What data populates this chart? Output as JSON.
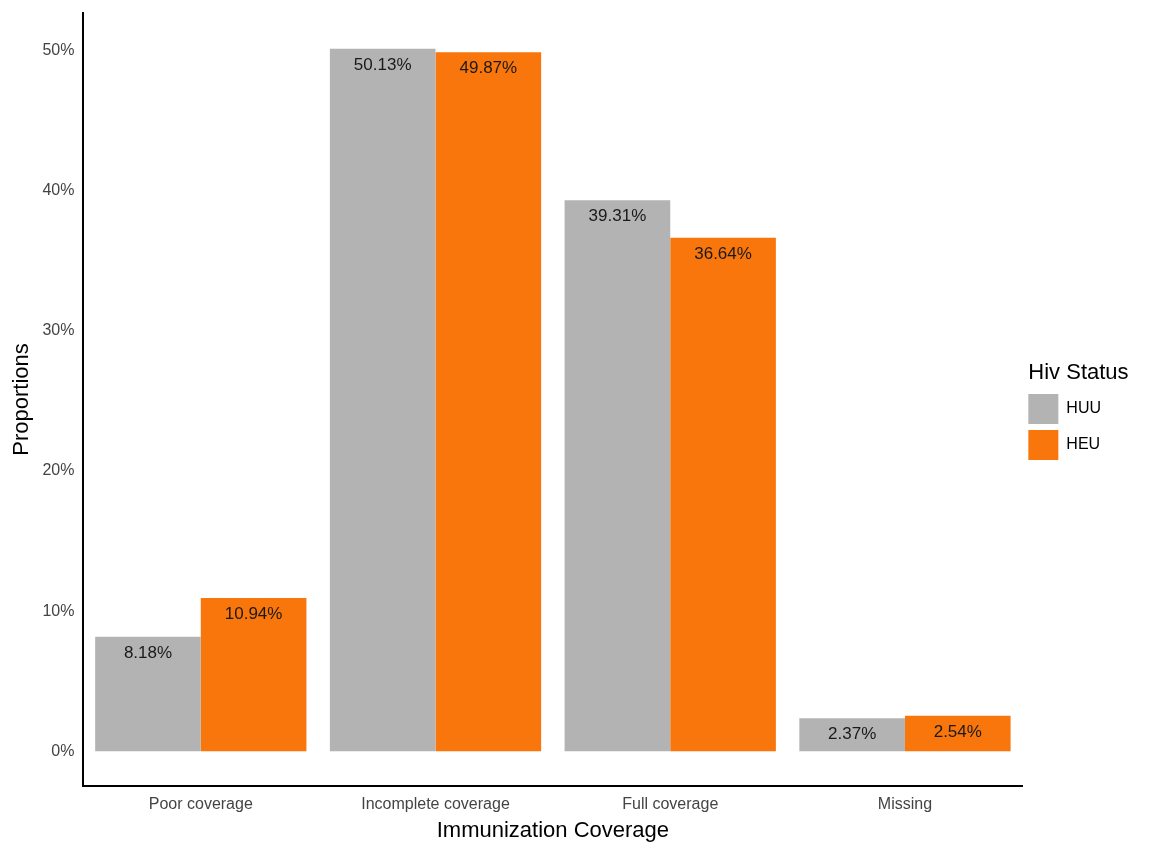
{
  "chart_data": {
    "type": "bar",
    "xlabel": "Immunization Coverage",
    "ylabel": "Proportions",
    "legend_title": "Hiv Status",
    "categories": [
      "Poor coverage",
      "Incomplete coverage",
      "Full coverage",
      "Missing"
    ],
    "series": [
      {
        "name": "HUU",
        "color": "#b3b3b3",
        "values": [
          8.18,
          50.13,
          39.31,
          2.37
        ],
        "value_labels": [
          "8.18%",
          "50.13%",
          "39.31%",
          "2.37%"
        ]
      },
      {
        "name": "HEU",
        "color": "#f8760b",
        "values": [
          10.94,
          49.87,
          36.64,
          2.54
        ],
        "value_labels": [
          "10.94%",
          "49.87%",
          "36.64%",
          "2.54%"
        ]
      }
    ],
    "ylim": [
      -2.5,
      52.7
    ],
    "yticks": [
      {
        "value": 0,
        "label": "0%"
      },
      {
        "value": 10,
        "label": "10%"
      },
      {
        "value": 20,
        "label": "20%"
      },
      {
        "value": 30,
        "label": "30%"
      },
      {
        "value": 40,
        "label": "40%"
      },
      {
        "value": 50,
        "label": "50%"
      }
    ],
    "grid": false,
    "legend": "right"
  }
}
